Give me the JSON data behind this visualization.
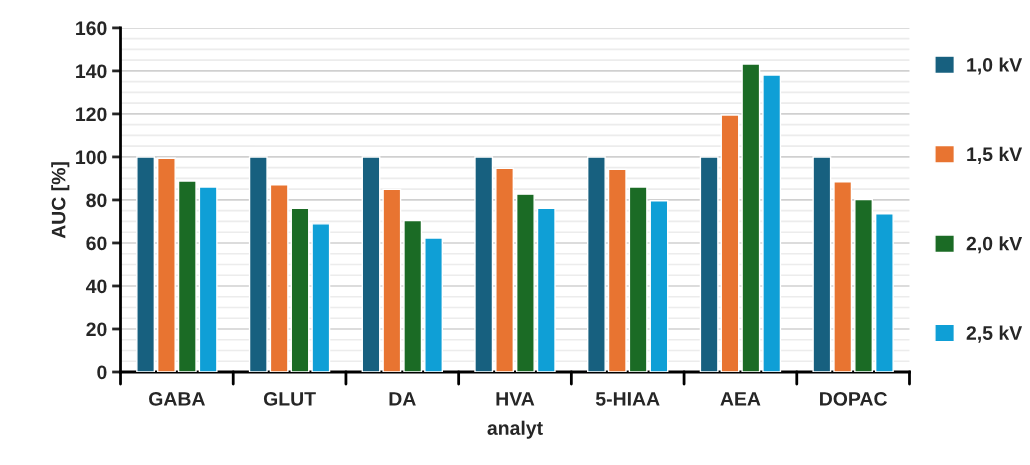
{
  "chart_data": {
    "type": "bar",
    "xlabel": "analyt",
    "ylabel": "AUC [%]",
    "categories": [
      "GABA",
      "GLUT",
      "DA",
      "HVA",
      "5-HIAA",
      "AEA",
      "DOPAC"
    ],
    "series": [
      {
        "name": "1,0 kV",
        "color": "#17607f",
        "values": [
          100,
          100,
          100,
          100,
          100,
          100,
          100
        ]
      },
      {
        "name": "1,5 kV",
        "color": "#e87431",
        "values": [
          99.4,
          87.1,
          84.9,
          94.7,
          94.2,
          119.5,
          88.4
        ]
      },
      {
        "name": "2,0 kV",
        "color": "#1b6b25",
        "values": [
          88.8,
          76.1,
          70.4,
          82.7,
          86.0,
          143.2,
          80.2
        ]
      },
      {
        "name": "2,5 kV",
        "color": "#0f9fd6",
        "values": [
          86.0,
          68.9,
          62.3,
          76.1,
          79.6,
          138.1,
          73.6
        ]
      }
    ],
    "ylim": [
      0,
      160
    ],
    "yticks": [
      0,
      20,
      40,
      60,
      80,
      100,
      120,
      140,
      160
    ],
    "grid": "y",
    "legend": "right"
  }
}
